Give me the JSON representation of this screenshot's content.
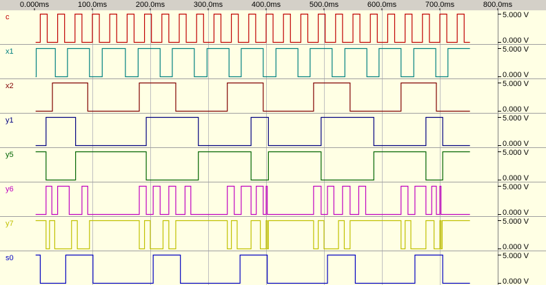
{
  "waveform": {
    "xlim": [
      0,
      800
    ],
    "xticks": [
      {
        "value": 0,
        "label": "0.000ms"
      },
      {
        "value": 100,
        "label": "100.0ms"
      },
      {
        "value": 200,
        "label": "200.0ms"
      },
      {
        "value": 300,
        "label": "300.0ms"
      },
      {
        "value": 400,
        "label": "400.0ms"
      },
      {
        "value": 500,
        "label": "500.0ms"
      },
      {
        "value": 600,
        "label": "600.0ms"
      },
      {
        "value": 700,
        "label": "700.0ms"
      },
      {
        "value": 800,
        "label": "800.0ms"
      }
    ],
    "start": 2,
    "end": 752,
    "channels": [
      {
        "name": "c",
        "color": "#c00000",
        "high_label": "5.000 V",
        "low_label": "0.000 V",
        "initial": 0,
        "edges": [
          10,
          22,
          40,
          52,
          70,
          82,
          100,
          112,
          130,
          142,
          160,
          172,
          190,
          202,
          220,
          232,
          250,
          262,
          280,
          292,
          310,
          322,
          340,
          352,
          370,
          382,
          400,
          412,
          430,
          442,
          460,
          472,
          490,
          502,
          520,
          532,
          550,
          562,
          580,
          592,
          610,
          622,
          640,
          652,
          670,
          682,
          700,
          712,
          730,
          742
        ]
      },
      {
        "name": "x1",
        "color": "#008080",
        "high_label": "5.000 V",
        "low_label": "0.000 V",
        "initial": 0,
        "edges": [
          3,
          36,
          57,
          95,
          117,
          157,
          179,
          217,
          238,
          276,
          298,
          336,
          357,
          395,
          417,
          455,
          476,
          514,
          536,
          574,
          595,
          633,
          655,
          693,
          714
        ]
      },
      {
        "name": "x2",
        "color": "#800000",
        "high_label": "5.000 V",
        "low_label": "0.000 V",
        "initial": 0,
        "edges": [
          31,
          92,
          181,
          244,
          333,
          395,
          482,
          545,
          633,
          694
        ]
      },
      {
        "name": "y1",
        "color": "#000080",
        "high_label": "5.000 V",
        "low_label": "0.000 V",
        "initial": 0,
        "edges": [
          20,
          71,
          193,
          283,
          374,
          404,
          495,
          586,
          676,
          705
        ]
      },
      {
        "name": "y5",
        "color": "#006400",
        "high_label": "5.000 V",
        "low_label": "0.000 V",
        "initial": 1,
        "edges": [
          20,
          71,
          193,
          283,
          374,
          404,
          495,
          586,
          676,
          705
        ]
      },
      {
        "name": "y6",
        "color": "#c000c0",
        "high_label": "5.000 V",
        "low_label": "0.000 V",
        "initial": 0,
        "edges": [
          20,
          30,
          40,
          60,
          82,
          92,
          181,
          193,
          205,
          217,
          232,
          244,
          260,
          270,
          333,
          345,
          357,
          374,
          383,
          395,
          400,
          402,
          482,
          495,
          506,
          517,
          532,
          545,
          560,
          572,
          633,
          645,
          657,
          676,
          686,
          694,
          700,
          702
        ]
      },
      {
        "name": "y7",
        "color": "#c0c000",
        "high_label": "5.000 V",
        "low_label": "0.000 V",
        "initial": 1,
        "edges": [
          20,
          26,
          35,
          64,
          74,
          95,
          181,
          190,
          200,
          222,
          232,
          244,
          333,
          340,
          350,
          374,
          390,
          400,
          402,
          404,
          482,
          490,
          500,
          525,
          535,
          545,
          633,
          640,
          650,
          676,
          690,
          700,
          702,
          704
        ]
      },
      {
        "name": "s0",
        "color": "#0000c0",
        "high_label": "5.000 V",
        "low_label": "0.000 V",
        "initial": 1,
        "edges": [
          10,
          54,
          101,
          205,
          252,
          355,
          402,
          506,
          554,
          657,
          705
        ]
      }
    ]
  }
}
